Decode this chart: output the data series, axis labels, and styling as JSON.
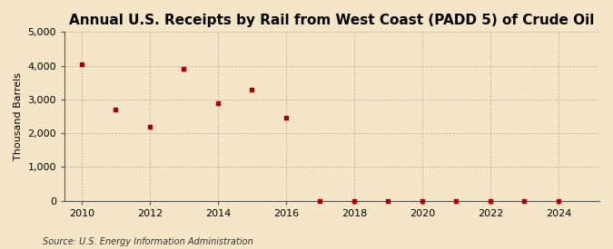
{
  "title": "Annual U.S. Receipts by Rail from West Coast (PADD 5) of Crude Oil",
  "ylabel": "Thousand Barrels",
  "source": "Source: U.S. Energy Information Administration",
  "background_color": "#f5e6c8",
  "plot_bg_color": "#f5e6c8",
  "marker_color": "#aa0000",
  "years": [
    2010,
    2011,
    2012,
    2013,
    2014,
    2015,
    2016,
    2017,
    2018,
    2019,
    2020,
    2021,
    2022,
    2023,
    2024
  ],
  "values": [
    4050,
    2700,
    2200,
    3900,
    2900,
    3300,
    2450,
    0,
    0,
    0,
    0,
    0,
    0,
    0,
    0
  ],
  "ylim": [
    0,
    5000
  ],
  "xlim": [
    2009.5,
    2025.2
  ],
  "yticks": [
    0,
    1000,
    2000,
    3000,
    4000,
    5000
  ],
  "ytick_labels": [
    "0",
    "1,000",
    "2,000",
    "3,000",
    "4,000",
    "5,000"
  ],
  "xticks": [
    2010,
    2012,
    2014,
    2016,
    2018,
    2020,
    2022,
    2024
  ],
  "title_fontsize": 11,
  "label_fontsize": 8,
  "tick_fontsize": 8,
  "source_fontsize": 7
}
